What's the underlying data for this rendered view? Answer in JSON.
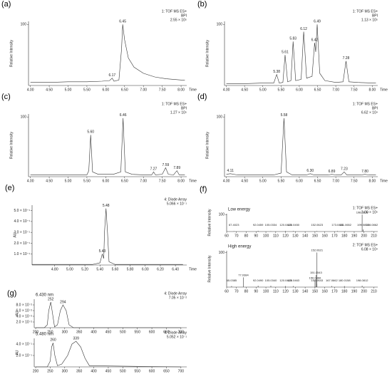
{
  "chart_data": [
    {
      "type": "line",
      "panel": "(a)",
      "info": [
        "1: TOF MS ES+",
        "BPI",
        "2.55 × 10⁵"
      ],
      "xlabel": "Time",
      "ylabel": "Relative Intensity",
      "color": "#333333",
      "xlim": [
        3.95,
        8.15
      ],
      "xticks": [
        {
          "value": 4,
          "label": "4.00"
        },
        {
          "value": 4.5,
          "label": "4.50"
        },
        {
          "value": 5,
          "label": "5.00"
        },
        {
          "value": 5.5,
          "label": "5.50"
        },
        {
          "value": 6,
          "label": "6.00"
        },
        {
          "value": 6.5,
          "label": "6.50"
        },
        {
          "value": 7,
          "label": "7.00"
        },
        {
          "value": 7.5,
          "label": "7.50"
        },
        {
          "value": 8,
          "label": "8.00"
        }
      ],
      "ylim": [
        0,
        105
      ],
      "yticks": [
        100
      ],
      "x": [
        4.0,
        4.5,
        5.0,
        5.5,
        5.9,
        6.1,
        6.17,
        6.22,
        6.35,
        6.42,
        6.45,
        6.5,
        6.6,
        6.75,
        7.0,
        7.3,
        7.6,
        8.0,
        8.1
      ],
      "values": [
        5,
        5,
        6,
        6,
        7,
        8,
        12,
        7,
        9,
        60,
        100,
        75,
        45,
        30,
        20,
        14,
        11,
        9,
        9
      ],
      "peaks": [
        {
          "x": 6.45,
          "y": 100,
          "label": "6.45"
        },
        {
          "x": 6.17,
          "y": 12,
          "label": "6.17"
        }
      ]
    },
    {
      "type": "line",
      "panel": "(b)",
      "info": [
        "1: TOF MS ES+",
        "BPI",
        "1.13 × 10⁵"
      ],
      "xlabel": "Time",
      "ylabel": "Relative Intensity",
      "color": "#333333",
      "xlim": [
        3.95,
        8.15
      ],
      "xticks": [
        {
          "value": 4,
          "label": "4.00"
        },
        {
          "value": 4.5,
          "label": "4.50"
        },
        {
          "value": 5,
          "label": "5.00"
        },
        {
          "value": 5.5,
          "label": "5.50"
        },
        {
          "value": 6,
          "label": "6.00"
        },
        {
          "value": 6.5,
          "label": "6.50"
        },
        {
          "value": 7,
          "label": "7.00"
        },
        {
          "value": 7.5,
          "label": "7.50"
        },
        {
          "value": 8,
          "label": "8.00"
        }
      ],
      "ylim": [
        0,
        105
      ],
      "yticks": [
        100
      ],
      "x": [
        4.0,
        4.5,
        5.0,
        5.3,
        5.38,
        5.45,
        5.55,
        5.61,
        5.68,
        5.77,
        5.83,
        5.9,
        6.05,
        6.12,
        6.2,
        6.35,
        6.42,
        6.45,
        6.49,
        6.56,
        6.7,
        7.0,
        7.2,
        7.28,
        7.36,
        7.6,
        8.0,
        8.1
      ],
      "values": [
        3,
        3,
        4,
        4,
        18,
        4,
        5,
        50,
        6,
        8,
        72,
        8,
        10,
        88,
        12,
        15,
        70,
        55,
        100,
        20,
        8,
        5,
        6,
        40,
        6,
        5,
        4,
        4
      ],
      "peaks": [
        {
          "x": 5.38,
          "y": 18,
          "label": "5.38"
        },
        {
          "x": 5.61,
          "y": 50,
          "label": "5.61"
        },
        {
          "x": 5.83,
          "y": 72,
          "label": "5.83"
        },
        {
          "x": 6.12,
          "y": 88,
          "label": "6.12"
        },
        {
          "x": 6.42,
          "y": 70,
          "label": "6.42"
        },
        {
          "x": 6.49,
          "y": 100,
          "label": "6.49"
        },
        {
          "x": 7.28,
          "y": 40,
          "label": "7.28"
        }
      ]
    },
    {
      "type": "line",
      "panel": "(c)",
      "info": [
        "1: TOF MS ES+",
        "BPI",
        "1.27 × 10⁵"
      ],
      "xlabel": "Time",
      "ylabel": "Relative Intensity",
      "color": "#333333",
      "xlim": [
        3.95,
        8.15
      ],
      "xticks": [
        {
          "value": 4,
          "label": "4.00"
        },
        {
          "value": 4.5,
          "label": "4.50"
        },
        {
          "value": 5,
          "label": "5.00"
        },
        {
          "value": 5.5,
          "label": "5.50"
        },
        {
          "value": 6,
          "label": "6.00"
        },
        {
          "value": 6.5,
          "label": "6.50"
        },
        {
          "value": 7,
          "label": "7.00"
        },
        {
          "value": 7.5,
          "label": "7.50"
        },
        {
          "value": 8,
          "label": "8.00"
        }
      ],
      "ylim": [
        0,
        105
      ],
      "yticks": [
        100
      ],
      "x": [
        4.0,
        4.5,
        5.0,
        5.5,
        5.55,
        5.6,
        5.65,
        5.8,
        6.2,
        6.4,
        6.46,
        6.52,
        6.7,
        7.0,
        7.22,
        7.27,
        7.32,
        7.5,
        7.59,
        7.66,
        7.8,
        7.89,
        7.95,
        8.1
      ],
      "values": [
        3,
        3,
        3,
        3,
        10,
        70,
        8,
        4,
        4,
        8,
        98,
        8,
        4,
        3,
        3,
        8,
        3,
        4,
        15,
        4,
        3,
        10,
        3,
        3
      ],
      "peaks": [
        {
          "x": 5.6,
          "y": 70,
          "label": "5.60"
        },
        {
          "x": 6.46,
          "y": 98,
          "label": "6.46"
        },
        {
          "x": 7.27,
          "y": 8,
          "label": "7.27"
        },
        {
          "x": 7.59,
          "y": 15,
          "label": "7.59"
        },
        {
          "x": 7.89,
          "y": 10,
          "label": "7.89"
        }
      ]
    },
    {
      "type": "line",
      "panel": "(d)",
      "info": [
        "1: TOF MS ES+",
        "BPI",
        "6.62 × 10⁴"
      ],
      "xlabel": "Time",
      "ylabel": "Relative Intensity",
      "color": "#333333",
      "xlim": [
        3.95,
        8.15
      ],
      "xticks": [
        {
          "value": 4,
          "label": "4.00"
        },
        {
          "value": 4.5,
          "label": "4.50"
        },
        {
          "value": 5,
          "label": "5.00"
        },
        {
          "value": 5.5,
          "label": "5.50"
        },
        {
          "value": 6,
          "label": "6.00"
        },
        {
          "value": 6.5,
          "label": "6.50"
        },
        {
          "value": 7,
          "label": "7.00"
        },
        {
          "value": 7.5,
          "label": "7.50"
        },
        {
          "value": 8,
          "label": "8.00"
        }
      ],
      "ylim": [
        0,
        105
      ],
      "yticks": [
        100
      ],
      "x": [
        4.0,
        4.11,
        4.3,
        4.8,
        5.3,
        5.5,
        5.58,
        5.65,
        5.8,
        6.2,
        6.3,
        6.4,
        6.8,
        6.89,
        7.0,
        7.15,
        7.23,
        7.3,
        7.7,
        7.8,
        7.9,
        8.1
      ],
      "values": [
        4,
        5,
        3,
        3,
        3,
        6,
        98,
        8,
        3,
        3,
        5,
        3,
        3,
        4,
        3,
        3,
        8,
        3,
        3,
        4,
        3,
        3
      ],
      "peaks": [
        {
          "x": 4.11,
          "y": 5,
          "label": "4.11"
        },
        {
          "x": 5.58,
          "y": 98,
          "label": "5.58"
        },
        {
          "x": 6.3,
          "y": 5,
          "label": "6.30"
        },
        {
          "x": 6.89,
          "y": 4,
          "label": "6.89"
        },
        {
          "x": 7.23,
          "y": 8,
          "label": "7.23"
        },
        {
          "x": 7.8,
          "y": 4,
          "label": "7.80"
        }
      ]
    },
    {
      "type": "line",
      "panel": "(e)",
      "info": [
        "4: Diode Array",
        "5.066 × 10⁻¹"
      ],
      "xlabel": "Time",
      "ylabel": "AU",
      "color": "#333333",
      "xlim": [
        4.5,
        6.55
      ],
      "xticks": [
        {
          "value": 4.8,
          "label": "4.80"
        },
        {
          "value": 5,
          "label": "5.00"
        },
        {
          "value": 5.2,
          "label": "5.20"
        },
        {
          "value": 5.4,
          "label": "5.40"
        },
        {
          "value": 5.6,
          "label": "5.60"
        },
        {
          "value": 5.8,
          "label": "5.80"
        },
        {
          "value": 6,
          "label": "6.00"
        },
        {
          "value": 6.2,
          "label": "6.20"
        },
        {
          "value": 6.4,
          "label": "6.40"
        }
      ],
      "ylim": [
        0,
        0.55
      ],
      "yticks": [
        {
          "value": 0.1,
          "label": "1.0 × 10⁻¹"
        },
        {
          "value": 0.2,
          "label": "2.0 × 10⁻¹"
        },
        {
          "value": 0.3,
          "label": "3.0 × 10⁻¹"
        },
        {
          "value": 0.4,
          "label": "4.0 × 10⁻¹"
        },
        {
          "value": 0.5,
          "label": "5.0 × 10⁻¹"
        }
      ],
      "x": [
        4.5,
        5.0,
        5.3,
        5.4,
        5.43,
        5.45,
        5.46,
        5.48,
        5.5,
        5.52,
        5.6,
        6.0,
        6.5
      ],
      "values": [
        0.005,
        0.005,
        0.005,
        0.02,
        0.1,
        0.06,
        0.3,
        0.52,
        0.3,
        0.03,
        0.005,
        0.005,
        0.005
      ],
      "peaks": [
        {
          "x": 5.48,
          "y": 0.52,
          "label": "5.48"
        },
        {
          "x": 5.43,
          "y": 0.1,
          "label": "5.43"
        }
      ]
    },
    {
      "type": "stem",
      "panel": "(f)",
      "title": "Low energy",
      "info": [
        "1: TOF MS ES+",
        "2.00 × 10⁵"
      ],
      "ylabel": "Relative Intensity",
      "color": "#333333",
      "xlim": [
        60,
        214
      ],
      "xticks": [
        60,
        70,
        80,
        90,
        100,
        110,
        120,
        130,
        140,
        150,
        160,
        170,
        180,
        190,
        200,
        210
      ],
      "ylim": [
        0,
        105
      ],
      "yticks": [
        100
      ],
      "x": [
        67.4023,
        92.0459,
        105.0334,
        120.0445,
        128.045,
        152.0623,
        173.0461,
        181.0652,
        198.0818,
        199.0852,
        208.0862
      ],
      "values": [
        2,
        4,
        2,
        3,
        3,
        3,
        3,
        2,
        100,
        12,
        2
      ],
      "x_labels": [
        "67.4023",
        "92.0459",
        "105.0334",
        "120.0445",
        "128.0450",
        "152.0623",
        "173.0461",
        "181.0652",
        "198.0818",
        "199.0852",
        "208.0862"
      ]
    },
    {
      "type": "stem",
      "title": "High energy",
      "info": [
        "2: TOF MS ES+",
        "6.08 × 10⁴"
      ],
      "ylabel": "Relative Intensity",
      "color": "#333333",
      "xlim": [
        60,
        214
      ],
      "xticks": [
        60,
        70,
        80,
        90,
        100,
        110,
        120,
        130,
        140,
        150,
        160,
        170,
        180,
        190,
        200,
        210
      ],
      "ylim": [
        0,
        105
      ],
      "yticks": [
        100
      ],
      "x": [
        65.0385,
        77.0384,
        92.049,
        105.034,
        120.0443,
        128.0463,
        150.0466,
        151.0543,
        152.0621,
        152.0643,
        167.0662,
        180.0158,
        198.0812
      ],
      "values": [
        3,
        28,
        4,
        4,
        3,
        3,
        20,
        35,
        100,
        8,
        3,
        3,
        4
      ],
      "x_labels": [
        "65.0385",
        "77.0384",
        "92.0490",
        "105.0340",
        "120.0443",
        "128.0463",
        "150.0466",
        "151.0543",
        "152.0621",
        "152.0643",
        "167.0662",
        "180.0158",
        "198.0812"
      ]
    },
    {
      "type": "line",
      "panel": "(g)",
      "title": "6.430 nm",
      "info": [
        "4: Diode Array",
        "7.05 × 10⁻²"
      ],
      "ylabel": "AU",
      "color": "#333333",
      "xlim": [
        195,
        720
      ],
      "xticks": [
        200,
        250,
        300,
        350,
        400,
        450,
        500,
        550,
        600,
        650,
        700
      ],
      "ylim": [
        0,
        0.1
      ],
      "yticks": [
        {
          "value": 0.02,
          "label": "2.0 × 10⁻²"
        },
        {
          "value": 0.04,
          "label": "4.0 × 10⁻²"
        },
        {
          "value": 0.06,
          "label": "6.0 × 10⁻²"
        },
        {
          "value": 0.08,
          "label": "8.0 × 10⁻²"
        }
      ],
      "x": [
        200,
        230,
        240,
        245,
        252,
        258,
        265,
        275,
        285,
        294,
        305,
        315,
        330,
        360,
        400,
        700
      ],
      "values": [
        0,
        0,
        0.01,
        0.06,
        0.09,
        0.05,
        0.003,
        0.01,
        0.06,
        0.08,
        0.06,
        0.01,
        0,
        0,
        0,
        0
      ],
      "peaks": [
        {
          "x": 252,
          "y": 0.09,
          "label": "252"
        },
        {
          "x": 294,
          "y": 0.08,
          "label": "294"
        }
      ]
    },
    {
      "type": "line",
      "title": "5.480 nm",
      "info": [
        "4: Diode Array",
        "5.052 × 10⁻¹"
      ],
      "ylabel": "AU",
      "color": "#333333",
      "xlim": [
        195,
        720
      ],
      "xticks": [
        200,
        250,
        300,
        350,
        400,
        450,
        500,
        550,
        600,
        650,
        700
      ],
      "ylim": [
        0,
        0.5
      ],
      "yticks": [
        {
          "value": 0.2,
          "label": "2.0 × 10⁻¹"
        },
        {
          "value": 0.4,
          "label": "4.0 × 10⁻¹"
        }
      ],
      "x": [
        200,
        240,
        250,
        255,
        260,
        266,
        275,
        290,
        310,
        325,
        339,
        355,
        370,
        385,
        700
      ],
      "values": [
        0,
        0,
        0.1,
        0.35,
        0.42,
        0.2,
        0.02,
        0.05,
        0.2,
        0.4,
        0.45,
        0.35,
        0.15,
        0.02,
        0
      ],
      "peaks": [
        {
          "x": 260,
          "y": 0.42,
          "label": "260"
        },
        {
          "x": 339,
          "y": 0.45,
          "label": "339"
        }
      ]
    }
  ]
}
